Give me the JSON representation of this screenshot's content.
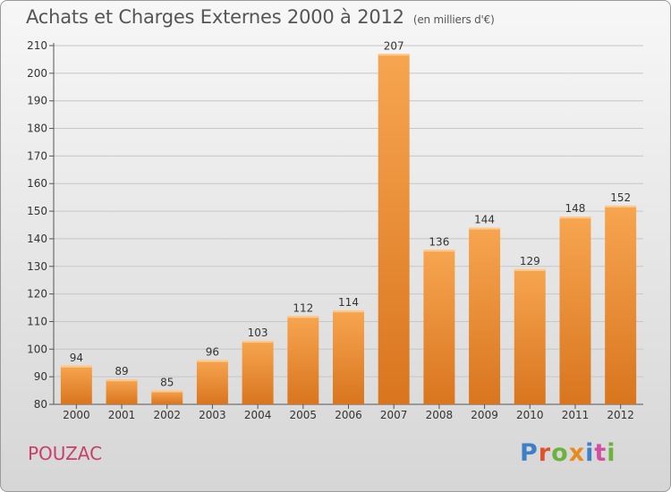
{
  "header": {
    "title": "Achats et Charges Externes 2000 à 2012",
    "unit_note": "(en milliers d'€)"
  },
  "footer": {
    "commune": "POUZAC",
    "logo_text": "Proxiti",
    "logo_colors": [
      "#3d7fc9",
      "#e0522d",
      "#6cb33e",
      "#e88a1d",
      "#3d7fc9",
      "#d24fa0",
      "#6cb33e"
    ]
  },
  "colors": {
    "bar_light": "#f7a550",
    "bar_dark": "#d9751f",
    "grid": "#c6c6c6",
    "axis": "#555555"
  },
  "chart_data": {
    "type": "bar",
    "title": "Achats et Charges Externes 2000 à 2012",
    "subtitle": "(en milliers d'€)",
    "categories": [
      "2000",
      "2001",
      "2002",
      "2003",
      "2004",
      "2005",
      "2006",
      "2007",
      "2008",
      "2009",
      "2010",
      "2011",
      "2012"
    ],
    "values": [
      94,
      89,
      85,
      96,
      103,
      112,
      114,
      207,
      136,
      144,
      129,
      148,
      152
    ],
    "ylim": [
      80,
      210
    ],
    "yticks": [
      80,
      90,
      100,
      110,
      120,
      130,
      140,
      150,
      160,
      170,
      180,
      190,
      200,
      210
    ],
    "grid": true,
    "data_labels": true
  }
}
